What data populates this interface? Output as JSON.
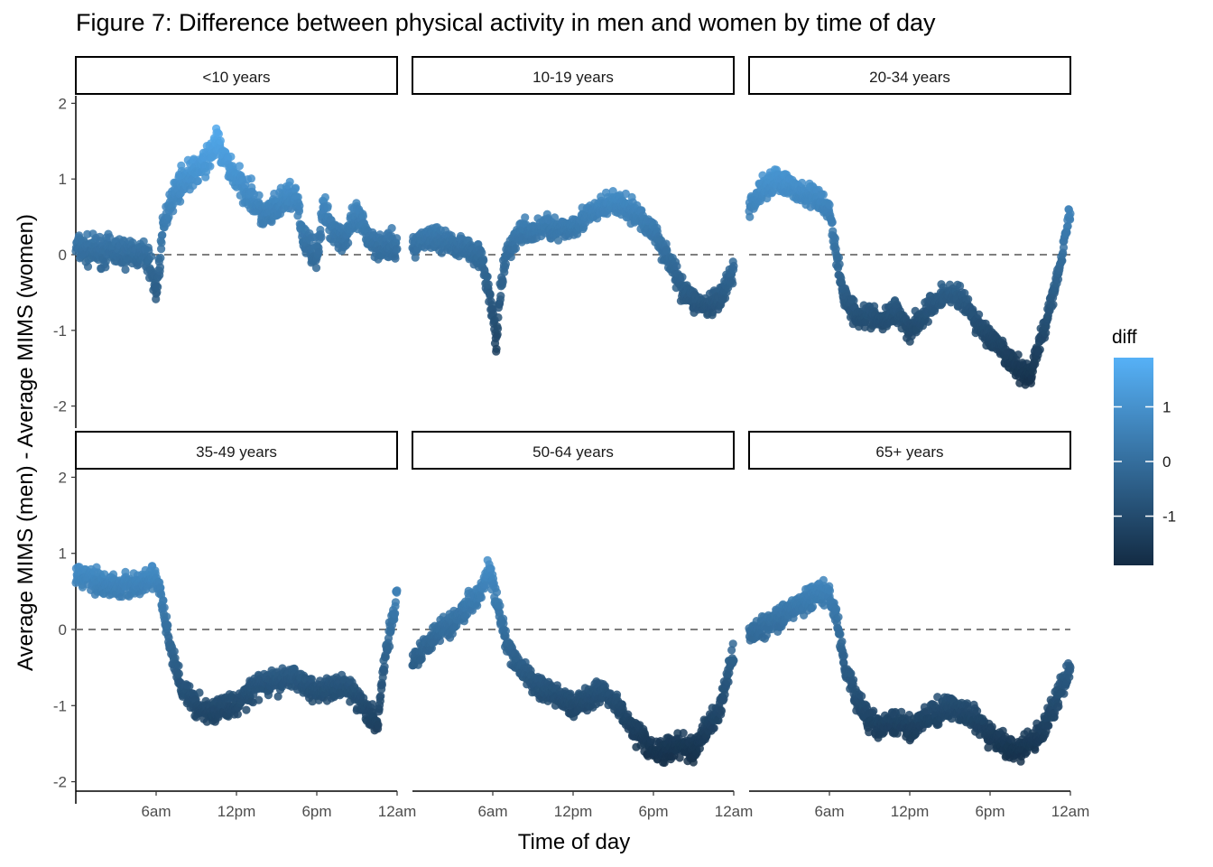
{
  "title": "Figure 7: Difference between physical activity in men and women by time of day",
  "chart_data": {
    "type": "scatter",
    "title": "Figure 7: Difference between physical activity in men and women by time of day",
    "xlabel": "Time of day",
    "ylabel": "Average MIMS (men) - Average MIMS (women)",
    "x_unit": "hours after midnight",
    "xlim": [
      0,
      24
    ],
    "ylim": [
      -2.1,
      2.1
    ],
    "x_ticks": [
      {
        "value": 6,
        "label": "6am"
      },
      {
        "value": 12,
        "label": "12pm"
      },
      {
        "value": 18,
        "label": "6pm"
      },
      {
        "value": 24,
        "label": "12am"
      }
    ],
    "y_ticks": [
      {
        "value": 2,
        "label": "2"
      },
      {
        "value": 1,
        "label": "1"
      },
      {
        "value": 0,
        "label": "0"
      },
      {
        "value": -1,
        "label": "-1"
      },
      {
        "value": -2,
        "label": "-2"
      }
    ],
    "reference_line": {
      "y": 0,
      "style": "dashed",
      "color": "#7f7f7f"
    },
    "grid": false,
    "legend": {
      "title": "diff",
      "position": "right",
      "type": "colorbar",
      "range": [
        -1.9,
        1.9
      ],
      "ticks": [
        {
          "value": 1,
          "label": "1"
        },
        {
          "value": 0,
          "label": "0"
        },
        {
          "value": -1,
          "label": "-1"
        }
      ],
      "low_color": "#132b43",
      "high_color": "#56b1f7"
    },
    "facets": [
      {
        "label": "<10 years",
        "x": [
          0,
          1,
          2,
          3,
          4,
          5,
          5.5,
          6,
          6.5,
          7,
          8,
          9,
          10,
          10.5,
          11,
          12,
          13,
          14,
          15,
          16,
          16.5,
          17,
          18,
          18.5,
          19,
          20,
          21,
          22,
          23,
          24
        ],
        "y": [
          0.1,
          0.05,
          0.05,
          0.05,
          0.02,
          0.0,
          -0.1,
          -0.5,
          0.3,
          0.7,
          1.0,
          1.1,
          1.3,
          1.5,
          1.3,
          1.0,
          0.8,
          0.5,
          0.6,
          0.8,
          0.7,
          0.2,
          0.0,
          0.6,
          0.4,
          0.2,
          0.5,
          0.2,
          0.1,
          0.1
        ],
        "spread": 0.25
      },
      {
        "label": "10-19 years",
        "x": [
          0,
          1,
          2,
          3,
          4,
          5,
          5.5,
          6,
          6.3,
          6.5,
          7,
          8,
          9,
          10,
          11,
          12,
          13,
          14,
          15,
          16,
          17,
          18,
          19,
          20,
          21,
          22,
          23,
          24
        ],
        "y": [
          0.1,
          0.25,
          0.2,
          0.15,
          0.1,
          0.0,
          -0.3,
          -0.8,
          -1.2,
          -0.6,
          0.0,
          0.3,
          0.3,
          0.4,
          0.3,
          0.4,
          0.5,
          0.6,
          0.7,
          0.6,
          0.5,
          0.3,
          0.0,
          -0.4,
          -0.6,
          -0.7,
          -0.6,
          -0.2
        ],
        "spread": 0.2
      },
      {
        "label": "20-34 years",
        "x": [
          0,
          1,
          2,
          3,
          4,
          5,
          6,
          6.5,
          7,
          8,
          9,
          10,
          11,
          12,
          13,
          14,
          15,
          16,
          17,
          18,
          19,
          20,
          21,
          22,
          23,
          24
        ],
        "y": [
          0.6,
          0.9,
          1.0,
          0.9,
          0.8,
          0.75,
          0.6,
          0.0,
          -0.5,
          -0.8,
          -0.8,
          -0.9,
          -0.7,
          -1.0,
          -0.8,
          -0.6,
          -0.5,
          -0.6,
          -0.9,
          -1.1,
          -1.3,
          -1.5,
          -1.6,
          -1.0,
          -0.3,
          0.6
        ],
        "spread": 0.2
      },
      {
        "label": "35-49 years",
        "x": [
          0,
          1,
          2,
          3,
          4,
          5,
          6,
          6.5,
          7,
          8,
          9,
          10,
          11,
          12,
          13,
          14,
          15,
          16,
          17,
          18,
          19,
          20,
          21,
          22,
          22.5,
          23,
          24
        ],
        "y": [
          0.7,
          0.7,
          0.6,
          0.55,
          0.6,
          0.6,
          0.7,
          0.3,
          -0.2,
          -0.8,
          -1.0,
          -1.1,
          -1.0,
          -1.0,
          -0.8,
          -0.7,
          -0.7,
          -0.6,
          -0.7,
          -0.8,
          -0.8,
          -0.7,
          -0.9,
          -1.1,
          -1.3,
          -0.5,
          0.5
        ],
        "spread": 0.2
      },
      {
        "label": "50-64 years",
        "x": [
          0,
          1,
          2,
          3,
          4,
          5,
          5.8,
          6,
          6.5,
          7,
          8,
          9,
          10,
          11,
          12,
          13,
          14,
          15,
          16,
          17,
          18,
          19,
          20,
          21,
          22,
          23,
          24
        ],
        "y": [
          -0.4,
          -0.2,
          0.0,
          0.1,
          0.3,
          0.5,
          0.8,
          0.6,
          0.2,
          -0.2,
          -0.5,
          -0.7,
          -0.8,
          -0.9,
          -1.0,
          -0.9,
          -0.8,
          -0.9,
          -1.2,
          -1.4,
          -1.6,
          -1.6,
          -1.5,
          -1.6,
          -1.3,
          -1.0,
          -0.3
        ],
        "spread": 0.2
      },
      {
        "label": "65+ years",
        "x": [
          0,
          1,
          2,
          3,
          4,
          5,
          5.8,
          6.5,
          7,
          8,
          9,
          10,
          11,
          12,
          13,
          14,
          15,
          16,
          17,
          18,
          19,
          20,
          21,
          22,
          23,
          24
        ],
        "y": [
          -0.1,
          0.05,
          0.15,
          0.25,
          0.35,
          0.45,
          0.5,
          0.2,
          -0.4,
          -0.9,
          -1.2,
          -1.3,
          -1.2,
          -1.3,
          -1.2,
          -1.1,
          -1.0,
          -1.1,
          -1.2,
          -1.4,
          -1.5,
          -1.6,
          -1.5,
          -1.3,
          -0.9,
          -0.5
        ],
        "spread": 0.2
      }
    ]
  }
}
